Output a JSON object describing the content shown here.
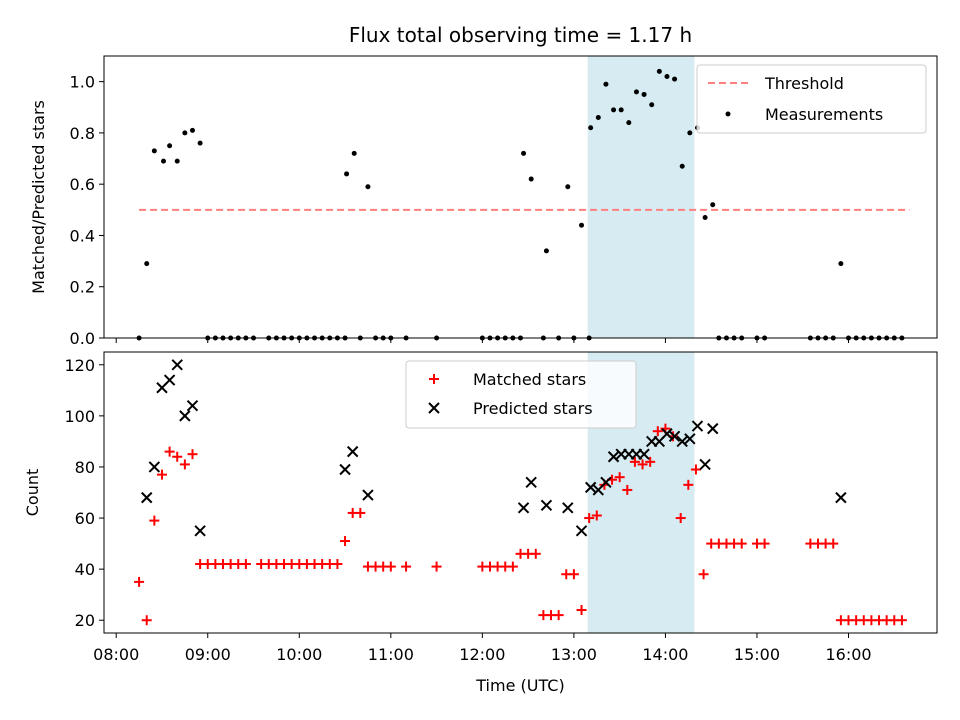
{
  "chart_data": [
    {
      "type": "scatter",
      "title": "Flux total observing time = 1.17 h",
      "ylabel": "Matched/Predicted stars",
      "xlabel": "",
      "xlim": [
        "07:52",
        "16:58"
      ],
      "ylim": [
        0.0,
        1.1
      ],
      "yticks": [
        0.0,
        0.2,
        0.4,
        0.6,
        0.8,
        1.0
      ],
      "ytick_labels": [
        "0.0",
        "0.2",
        "0.4",
        "0.6",
        "0.8",
        "1.0"
      ],
      "highlight_span": {
        "start": "13:09",
        "end": "14:19",
        "color": "#add8e6"
      },
      "legend": {
        "position": "upper right",
        "entries": [
          "Threshold",
          "Measurements"
        ]
      },
      "threshold": {
        "name": "Threshold",
        "value": 0.5,
        "x_start": "08:15",
        "x_end": "16:40",
        "color": "#ff7f7f",
        "style": "dashed"
      },
      "series": [
        {
          "name": "Measurements",
          "marker": "dot",
          "color": "#000000",
          "points": [
            [
              "08:15",
              0.0
            ],
            [
              "08:20",
              0.29
            ],
            [
              "08:25",
              0.73
            ],
            [
              "08:31",
              0.69
            ],
            [
              "08:35",
              0.75
            ],
            [
              "08:40",
              0.69
            ],
            [
              "08:45",
              0.8
            ],
            [
              "08:50",
              0.81
            ],
            [
              "08:55",
              0.76
            ],
            [
              "09:00",
              0.0
            ],
            [
              "09:05",
              0.0
            ],
            [
              "09:10",
              0.0
            ],
            [
              "09:15",
              0.0
            ],
            [
              "09:20",
              0.0
            ],
            [
              "09:25",
              0.0
            ],
            [
              "09:30",
              0.0
            ],
            [
              "09:40",
              0.0
            ],
            [
              "09:45",
              0.0
            ],
            [
              "09:50",
              0.0
            ],
            [
              "09:55",
              0.0
            ],
            [
              "10:00",
              0.0
            ],
            [
              "10:05",
              0.0
            ],
            [
              "10:10",
              0.0
            ],
            [
              "10:15",
              0.0
            ],
            [
              "10:20",
              0.0
            ],
            [
              "10:25",
              0.0
            ],
            [
              "10:30",
              0.0
            ],
            [
              "10:31",
              0.64
            ],
            [
              "10:36",
              0.72
            ],
            [
              "10:40",
              0.0
            ],
            [
              "10:45",
              0.59
            ],
            [
              "10:50",
              0.0
            ],
            [
              "10:55",
              0.0
            ],
            [
              "11:00",
              0.0
            ],
            [
              "11:10",
              0.0
            ],
            [
              "11:30",
              0.0
            ],
            [
              "12:00",
              0.0
            ],
            [
              "12:05",
              0.0
            ],
            [
              "12:10",
              0.0
            ],
            [
              "12:15",
              0.0
            ],
            [
              "12:20",
              0.0
            ],
            [
              "12:25",
              0.0
            ],
            [
              "12:27",
              0.72
            ],
            [
              "12:32",
              0.62
            ],
            [
              "12:40",
              0.0
            ],
            [
              "12:42",
              0.34
            ],
            [
              "12:50",
              0.0
            ],
            [
              "12:56",
              0.59
            ],
            [
              "13:00",
              0.0
            ],
            [
              "13:05",
              0.44
            ],
            [
              "13:10",
              0.0
            ],
            [
              "13:11",
              0.82
            ],
            [
              "13:16",
              0.86
            ],
            [
              "13:21",
              0.99
            ],
            [
              "13:26",
              0.89
            ],
            [
              "13:31",
              0.89
            ],
            [
              "13:36",
              0.84
            ],
            [
              "13:41",
              0.96
            ],
            [
              "13:46",
              0.95
            ],
            [
              "13:51",
              0.91
            ],
            [
              "13:56",
              1.04
            ],
            [
              "14:01",
              1.02
            ],
            [
              "14:06",
              1.01
            ],
            [
              "14:11",
              0.67
            ],
            [
              "14:16",
              0.8
            ],
            [
              "14:21",
              0.82
            ],
            [
              "14:26",
              0.47
            ],
            [
              "14:31",
              0.52
            ],
            [
              "14:35",
              0.0
            ],
            [
              "14:40",
              0.0
            ],
            [
              "14:45",
              0.0
            ],
            [
              "14:50",
              0.0
            ],
            [
              "15:00",
              0.0
            ],
            [
              "15:05",
              0.0
            ],
            [
              "15:35",
              0.0
            ],
            [
              "15:40",
              0.0
            ],
            [
              "15:45",
              0.0
            ],
            [
              "15:50",
              0.0
            ],
            [
              "15:55",
              0.29
            ],
            [
              "16:00",
              0.0
            ],
            [
              "16:05",
              0.0
            ],
            [
              "16:10",
              0.0
            ],
            [
              "16:15",
              0.0
            ],
            [
              "16:20",
              0.0
            ],
            [
              "16:25",
              0.0
            ],
            [
              "16:30",
              0.0
            ],
            [
              "16:35",
              0.0
            ]
          ]
        }
      ]
    },
    {
      "type": "scatter",
      "title": "",
      "ylabel": "Count",
      "xlabel": "Time (UTC)",
      "xlim": [
        "07:52",
        "16:58"
      ],
      "ylim": [
        15,
        125
      ],
      "xticks": [
        "08:00",
        "09:00",
        "10:00",
        "11:00",
        "12:00",
        "13:00",
        "14:00",
        "15:00",
        "16:00"
      ],
      "xtick_labels": [
        "08:00",
        "09:00",
        "10:00",
        "11:00",
        "12:00",
        "13:00",
        "14:00",
        "15:00",
        "16:00"
      ],
      "yticks": [
        20,
        40,
        60,
        80,
        100,
        120
      ],
      "ytick_labels": [
        "20",
        "40",
        "60",
        "80",
        "100",
        "120"
      ],
      "highlight_span": {
        "start": "13:09",
        "end": "14:19",
        "color": "#add8e6"
      },
      "legend": {
        "position": "upper center",
        "entries": [
          "Matched stars",
          "Predicted stars"
        ]
      },
      "series": [
        {
          "name": "Matched stars",
          "marker": "plus",
          "color": "#ff0000",
          "points": [
            [
              "08:15",
              35
            ],
            [
              "08:20",
              20
            ],
            [
              "08:25",
              59
            ],
            [
              "08:30",
              77
            ],
            [
              "08:35",
              86
            ],
            [
              "08:40",
              84
            ],
            [
              "08:45",
              81
            ],
            [
              "08:50",
              85
            ],
            [
              "08:55",
              42
            ],
            [
              "09:00",
              42
            ],
            [
              "09:05",
              42
            ],
            [
              "09:10",
              42
            ],
            [
              "09:15",
              42
            ],
            [
              "09:20",
              42
            ],
            [
              "09:25",
              42
            ],
            [
              "09:35",
              42
            ],
            [
              "09:40",
              42
            ],
            [
              "09:45",
              42
            ],
            [
              "09:50",
              42
            ],
            [
              "09:55",
              42
            ],
            [
              "10:00",
              42
            ],
            [
              "10:05",
              42
            ],
            [
              "10:10",
              42
            ],
            [
              "10:15",
              42
            ],
            [
              "10:20",
              42
            ],
            [
              "10:25",
              42
            ],
            [
              "10:30",
              51
            ],
            [
              "10:35",
              62
            ],
            [
              "10:40",
              62
            ],
            [
              "10:45",
              41
            ],
            [
              "10:50",
              41
            ],
            [
              "10:55",
              41
            ],
            [
              "11:00",
              41
            ],
            [
              "11:10",
              41
            ],
            [
              "11:30",
              41
            ],
            [
              "12:00",
              41
            ],
            [
              "12:05",
              41
            ],
            [
              "12:10",
              41
            ],
            [
              "12:15",
              41
            ],
            [
              "12:20",
              41
            ],
            [
              "12:25",
              46
            ],
            [
              "12:30",
              46
            ],
            [
              "12:35",
              46
            ],
            [
              "12:40",
              22
            ],
            [
              "12:45",
              22
            ],
            [
              "12:50",
              22
            ],
            [
              "12:55",
              38
            ],
            [
              "13:00",
              38
            ],
            [
              "13:05",
              24
            ],
            [
              "13:10",
              60
            ],
            [
              "13:15",
              61
            ],
            [
              "13:20",
              73
            ],
            [
              "13:25",
              75
            ],
            [
              "13:30",
              76
            ],
            [
              "13:35",
              71
            ],
            [
              "13:40",
              82
            ],
            [
              "13:45",
              81
            ],
            [
              "13:50",
              82
            ],
            [
              "13:55",
              94
            ],
            [
              "14:00",
              95
            ],
            [
              "14:05",
              92
            ],
            [
              "14:10",
              60
            ],
            [
              "14:15",
              73
            ],
            [
              "14:20",
              79
            ],
            [
              "14:25",
              38
            ],
            [
              "14:30",
              50
            ],
            [
              "14:35",
              50
            ],
            [
              "14:40",
              50
            ],
            [
              "14:45",
              50
            ],
            [
              "14:50",
              50
            ],
            [
              "15:00",
              50
            ],
            [
              "15:05",
              50
            ],
            [
              "15:35",
              50
            ],
            [
              "15:40",
              50
            ],
            [
              "15:45",
              50
            ],
            [
              "15:50",
              50
            ],
            [
              "15:55",
              20
            ],
            [
              "16:00",
              20
            ],
            [
              "16:05",
              20
            ],
            [
              "16:10",
              20
            ],
            [
              "16:15",
              20
            ],
            [
              "16:20",
              20
            ],
            [
              "16:25",
              20
            ],
            [
              "16:30",
              20
            ],
            [
              "16:35",
              20
            ]
          ]
        },
        {
          "name": "Predicted stars",
          "marker": "x",
          "color": "#000000",
          "points": [
            [
              "08:20",
              68
            ],
            [
              "08:25",
              80
            ],
            [
              "08:30",
              111
            ],
            [
              "08:35",
              114
            ],
            [
              "08:40",
              120
            ],
            [
              "08:45",
              100
            ],
            [
              "08:50",
              104
            ],
            [
              "08:55",
              55
            ],
            [
              "10:30",
              79
            ],
            [
              "10:35",
              86
            ],
            [
              "10:45",
              69
            ],
            [
              "12:27",
              64
            ],
            [
              "12:32",
              74
            ],
            [
              "12:42",
              65
            ],
            [
              "12:56",
              64
            ],
            [
              "13:05",
              55
            ],
            [
              "13:11",
              72
            ],
            [
              "13:16",
              71
            ],
            [
              "13:21",
              74
            ],
            [
              "13:26",
              84
            ],
            [
              "13:31",
              85
            ],
            [
              "13:36",
              85
            ],
            [
              "13:41",
              85
            ],
            [
              "13:46",
              85
            ],
            [
              "13:51",
              90
            ],
            [
              "13:56",
              90
            ],
            [
              "14:01",
              93
            ],
            [
              "14:06",
              92
            ],
            [
              "14:11",
              90
            ],
            [
              "14:16",
              91
            ],
            [
              "14:21",
              96
            ],
            [
              "14:26",
              81
            ],
            [
              "14:31",
              95
            ],
            [
              "15:55",
              68
            ]
          ]
        }
      ]
    }
  ]
}
